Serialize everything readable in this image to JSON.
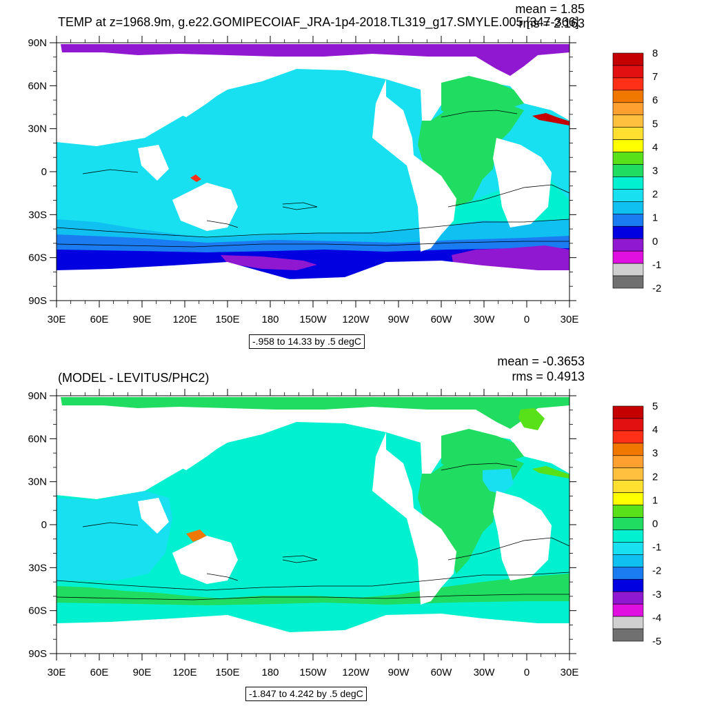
{
  "chart_data": [
    {
      "type": "heatmap",
      "projection": "cylindrical-equidistant",
      "title": "TEMP at z=1968.9m, g.e22.GOMIPECOIAF_JRA-1p4-2018.TL319_g17.SMYLE.005 [347-366]",
      "stats": {
        "mean_label": "mean = 1.85",
        "rms_label": "rms = 2.163",
        "mean": 1.85,
        "rms": 2.163
      },
      "range_label": "-.958 to 14.33 by .5 degC",
      "xlim": [
        30,
        390
      ],
      "ylim": [
        -90,
        90
      ],
      "x_ticks": [
        "30E",
        "60E",
        "90E",
        "120E",
        "150E",
        "180",
        "150W",
        "120W",
        "90W",
        "60W",
        "30W",
        "0",
        "30E"
      ],
      "y_ticks": [
        "90N",
        "60N",
        "30N",
        "0",
        "30S",
        "60S",
        "90S"
      ],
      "colorbar": {
        "labels": [
          "8",
          "7",
          "6",
          "5",
          "4",
          "3",
          "2",
          "1",
          "0",
          "-1",
          "-2"
        ],
        "colors": [
          "#c40000",
          "#e21010",
          "#ff3018",
          "#f07800",
          "#ffa030",
          "#ffc040",
          "#ffe030",
          "#ffff00",
          "#58e018",
          "#20dc60",
          "#00f0d0",
          "#18e0f0",
          "#10c0f0",
          "#1a7cf0",
          "#0000e0",
          "#9018d0",
          "#e010e0",
          "#d0d0d0",
          "#707070"
        ]
      },
      "fields": [
        {
          "name": "ocean-base",
          "color": "#18e0f0"
        },
        {
          "name": "arctic",
          "color": "#9018d0"
        },
        {
          "name": "north-atlantic",
          "color": "#20dc60"
        },
        {
          "name": "southern-ocean-1",
          "color": "#10c0f0"
        },
        {
          "name": "southern-ocean-2",
          "color": "#1a7cf0"
        },
        {
          "name": "southern-ocean-3",
          "color": "#0000e0"
        },
        {
          "name": "weddell-ross",
          "color": "#9018d0"
        },
        {
          "name": "south-atlantic",
          "color": "#00f0d0"
        },
        {
          "name": "mediterranean",
          "color": "#c40000"
        },
        {
          "name": "caribbean",
          "color": "#ffff00"
        },
        {
          "name": "indonesia-warm",
          "color": "#ff3018"
        }
      ]
    },
    {
      "type": "heatmap",
      "projection": "cylindrical-equidistant",
      "title": "(MODEL - LEVITUS/PHC2)",
      "stats": {
        "mean_label": "mean = -0.3653",
        "rms_label": "rms = 0.4913",
        "mean": -0.3653,
        "rms": 0.4913
      },
      "range_label": "-1.847 to 4.242 by .5 degC",
      "xlim": [
        30,
        390
      ],
      "ylim": [
        -90,
        90
      ],
      "x_ticks": [
        "30E",
        "60E",
        "90E",
        "120E",
        "150E",
        "180",
        "150W",
        "120W",
        "90W",
        "60W",
        "30W",
        "0",
        "30E"
      ],
      "y_ticks": [
        "90N",
        "60N",
        "30N",
        "0",
        "30S",
        "60S",
        "90S"
      ],
      "colorbar": {
        "labels": [
          "5",
          "4",
          "3",
          "2",
          "1",
          "0",
          "-1",
          "-2",
          "-3",
          "-4",
          "-5"
        ],
        "colors": [
          "#c40000",
          "#e21010",
          "#ff3018",
          "#f07800",
          "#ffa030",
          "#ffc040",
          "#ffe030",
          "#ffff00",
          "#58e018",
          "#20dc60",
          "#00f0d0",
          "#18e0f0",
          "#10c0f0",
          "#1a7cf0",
          "#0000e0",
          "#9018d0",
          "#e010e0",
          "#d0d0d0",
          "#707070"
        ]
      },
      "fields": [
        {
          "name": "ocean-base",
          "color": "#00f0d0"
        },
        {
          "name": "arctic",
          "color": "#20dc60"
        },
        {
          "name": "north-atlantic",
          "color": "#20dc60"
        },
        {
          "name": "indian-cyan",
          "color": "#18e0f0"
        },
        {
          "name": "southern-band",
          "color": "#20dc60"
        },
        {
          "name": "southern-ocean",
          "color": "#00f0d0"
        },
        {
          "name": "labrador",
          "color": "#18e0f0"
        },
        {
          "name": "mediterranean",
          "color": "#58e018"
        },
        {
          "name": "indonesia-warm",
          "color": "#f07800"
        },
        {
          "name": "barents",
          "color": "#58e018"
        }
      ]
    }
  ]
}
